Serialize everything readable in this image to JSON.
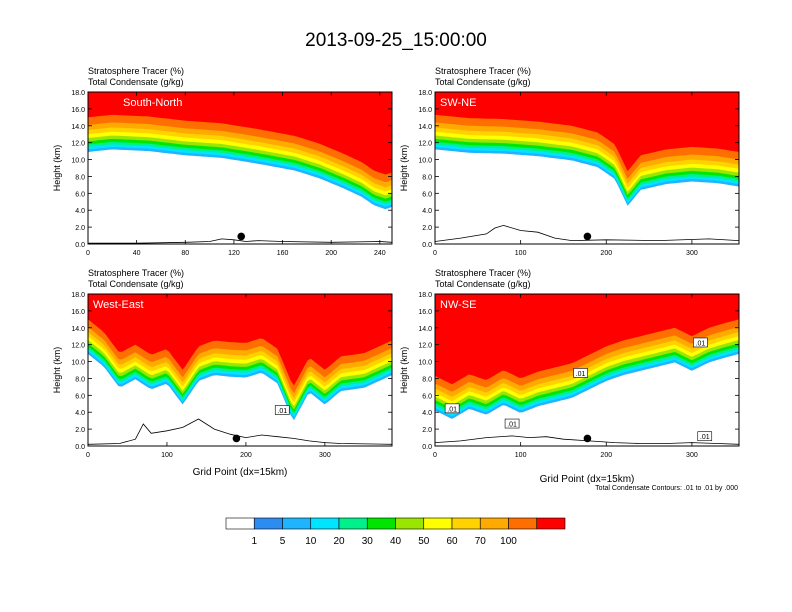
{
  "title": "2013-09-25_15:00:00",
  "footnote": "Total Condensate Contours: .01 to .01 by .000",
  "colorbar": {
    "labels": [
      "1",
      "5",
      "10",
      "20",
      "30",
      "40",
      "50",
      "60",
      "70",
      "100"
    ],
    "colors": [
      "#ffffff",
      "#2d8cf0",
      "#1eb4ff",
      "#00e5ff",
      "#00f08c",
      "#00e600",
      "#9be600",
      "#ffff00",
      "#ffd200",
      "#ffaa00",
      "#ff6e00",
      "#ff0000"
    ]
  },
  "chart_data": [
    {
      "type": "heatmap",
      "panel": "South-North",
      "label_top": "Stratosphere Tracer   (%)",
      "label_bottom": "Total Condensate   (g/kg)",
      "ylabel": "Height (km)",
      "xlabel": "",
      "xlim": [
        0,
        250
      ],
      "ylim": [
        0,
        18
      ],
      "xticks": [
        "0",
        "40",
        "80",
        "120",
        "160",
        "200",
        "240"
      ],
      "xtick_values": [
        0,
        40,
        80,
        120,
        160,
        200,
        240
      ],
      "yticks": [
        "0.0",
        "2.0",
        "4.0",
        "6.0",
        "8.0",
        "10.0",
        "12.0",
        "14.0",
        "16.0",
        "18.0"
      ],
      "tropopause_x": [
        0,
        20,
        50,
        80,
        110,
        140,
        170,
        190,
        210,
        225,
        235,
        245,
        250
      ],
      "tropopause_km": [
        15.0,
        15.3,
        15.1,
        14.6,
        14.3,
        13.6,
        12.8,
        11.9,
        10.7,
        9.7,
        8.7,
        8.2,
        8.5
      ],
      "terrain_x": [
        0,
        40,
        80,
        100,
        110,
        120,
        130,
        140,
        160,
        200,
        240,
        250
      ],
      "terrain_km": [
        0.1,
        0.1,
        0.2,
        0.3,
        0.6,
        0.5,
        0.3,
        0.4,
        0.3,
        0.2,
        0.3,
        0.2
      ],
      "marker_x": 126,
      "contour_labels": []
    },
    {
      "type": "heatmap",
      "panel": "SW-NE",
      "label_top": "Stratosphere Tracer   (%)",
      "label_bottom": "Total Condensate   (g/kg)",
      "ylabel": "Height (km)",
      "xlabel": "",
      "xlim": [
        0,
        355
      ],
      "ylim": [
        0,
        18
      ],
      "xticks": [
        "0",
        "100",
        "200",
        "300"
      ],
      "xtick_values": [
        0,
        100,
        200,
        300
      ],
      "yticks": [
        "0.0",
        "2.0",
        "4.0",
        "6.0",
        "8.0",
        "10.0",
        "12.0",
        "14.0",
        "16.0",
        "18.0"
      ],
      "tropopause_x": [
        0,
        40,
        80,
        120,
        160,
        190,
        210,
        225,
        240,
        270,
        300,
        330,
        355
      ],
      "tropopause_km": [
        15.3,
        14.9,
        14.8,
        14.5,
        14.0,
        13.2,
        11.8,
        8.6,
        10.5,
        11.2,
        11.5,
        11.3,
        10.9
      ],
      "terrain_x": [
        0,
        30,
        60,
        70,
        80,
        100,
        120,
        140,
        160,
        200,
        260,
        320,
        355
      ],
      "terrain_km": [
        0.3,
        0.7,
        1.2,
        1.9,
        2.2,
        1.6,
        1.4,
        0.7,
        0.4,
        0.5,
        0.4,
        0.6,
        0.4
      ],
      "marker_x": 178,
      "contour_labels": []
    },
    {
      "type": "heatmap",
      "panel": "West-East",
      "label_top": "Stratosphere Tracer   (%)",
      "label_bottom": "Total Condensate   (g/kg)",
      "ylabel": "Height (km)",
      "xlabel": "Grid Point (dx=15km)",
      "xlim": [
        0,
        385
      ],
      "ylim": [
        0,
        18
      ],
      "xticks": [
        "0",
        "100",
        "200",
        "300"
      ],
      "xtick_values": [
        0,
        100,
        200,
        300
      ],
      "yticks": [
        "0.0",
        "2.0",
        "4.0",
        "6.0",
        "8.0",
        "10.0",
        "12.0",
        "14.0",
        "16.0",
        "18.0"
      ],
      "tropopause_x": [
        0,
        20,
        40,
        60,
        80,
        100,
        120,
        140,
        160,
        180,
        200,
        220,
        240,
        260,
        280,
        300,
        320,
        350,
        385
      ],
      "tropopause_km": [
        15.0,
        13.5,
        11.0,
        12.0,
        10.8,
        11.5,
        9.0,
        11.8,
        12.5,
        12.3,
        12.2,
        12.8,
        11.5,
        7.0,
        10.5,
        9.0,
        10.6,
        11.0,
        12.5
      ],
      "terrain_x": [
        0,
        40,
        60,
        70,
        80,
        100,
        120,
        140,
        160,
        180,
        200,
        220,
        240,
        260,
        280,
        300,
        320,
        385
      ],
      "terrain_km": [
        0.2,
        0.3,
        0.8,
        2.6,
        1.5,
        1.8,
        2.2,
        3.2,
        2.0,
        1.4,
        1.0,
        1.3,
        1.1,
        0.9,
        0.6,
        0.4,
        0.3,
        0.2
      ],
      "marker_x": 188,
      "contour_labels": [
        ".01"
      ]
    },
    {
      "type": "heatmap",
      "panel": "NW-SE",
      "label_top": "Stratosphere Tracer   (%)",
      "label_bottom": "Total Condensate   (g/kg)",
      "ylabel": "Height (km)",
      "xlabel": "Grid Point (dx=15km)",
      "xlim": [
        0,
        355
      ],
      "ylim": [
        0,
        18
      ],
      "xticks": [
        "0",
        "100",
        "200",
        "300"
      ],
      "xtick_values": [
        0,
        100,
        200,
        300
      ],
      "yticks": [
        "0.0",
        "2.0",
        "4.0",
        "6.0",
        "8.0",
        "10.0",
        "12.0",
        "14.0",
        "16.0",
        "18.0"
      ],
      "tropopause_x": [
        0,
        20,
        40,
        60,
        80,
        100,
        120,
        140,
        160,
        180,
        200,
        220,
        240,
        260,
        280,
        300,
        320,
        340,
        355
      ],
      "tropopause_km": [
        8.3,
        7.3,
        8.5,
        7.8,
        9.0,
        8.0,
        8.8,
        9.3,
        9.8,
        10.8,
        11.8,
        12.5,
        13.0,
        13.5,
        14.0,
        13.0,
        14.0,
        14.6,
        15.0
      ],
      "terrain_x": [
        0,
        30,
        60,
        90,
        110,
        130,
        150,
        180,
        210,
        240,
        270,
        300,
        330,
        355
      ],
      "terrain_km": [
        0.4,
        0.6,
        1.0,
        1.2,
        1.0,
        1.1,
        0.8,
        0.6,
        0.4,
        0.3,
        0.3,
        0.4,
        0.3,
        0.2
      ],
      "marker_x": 178,
      "contour_labels": [
        ".01",
        ".01",
        ".01",
        ".01",
        ".01"
      ]
    }
  ]
}
